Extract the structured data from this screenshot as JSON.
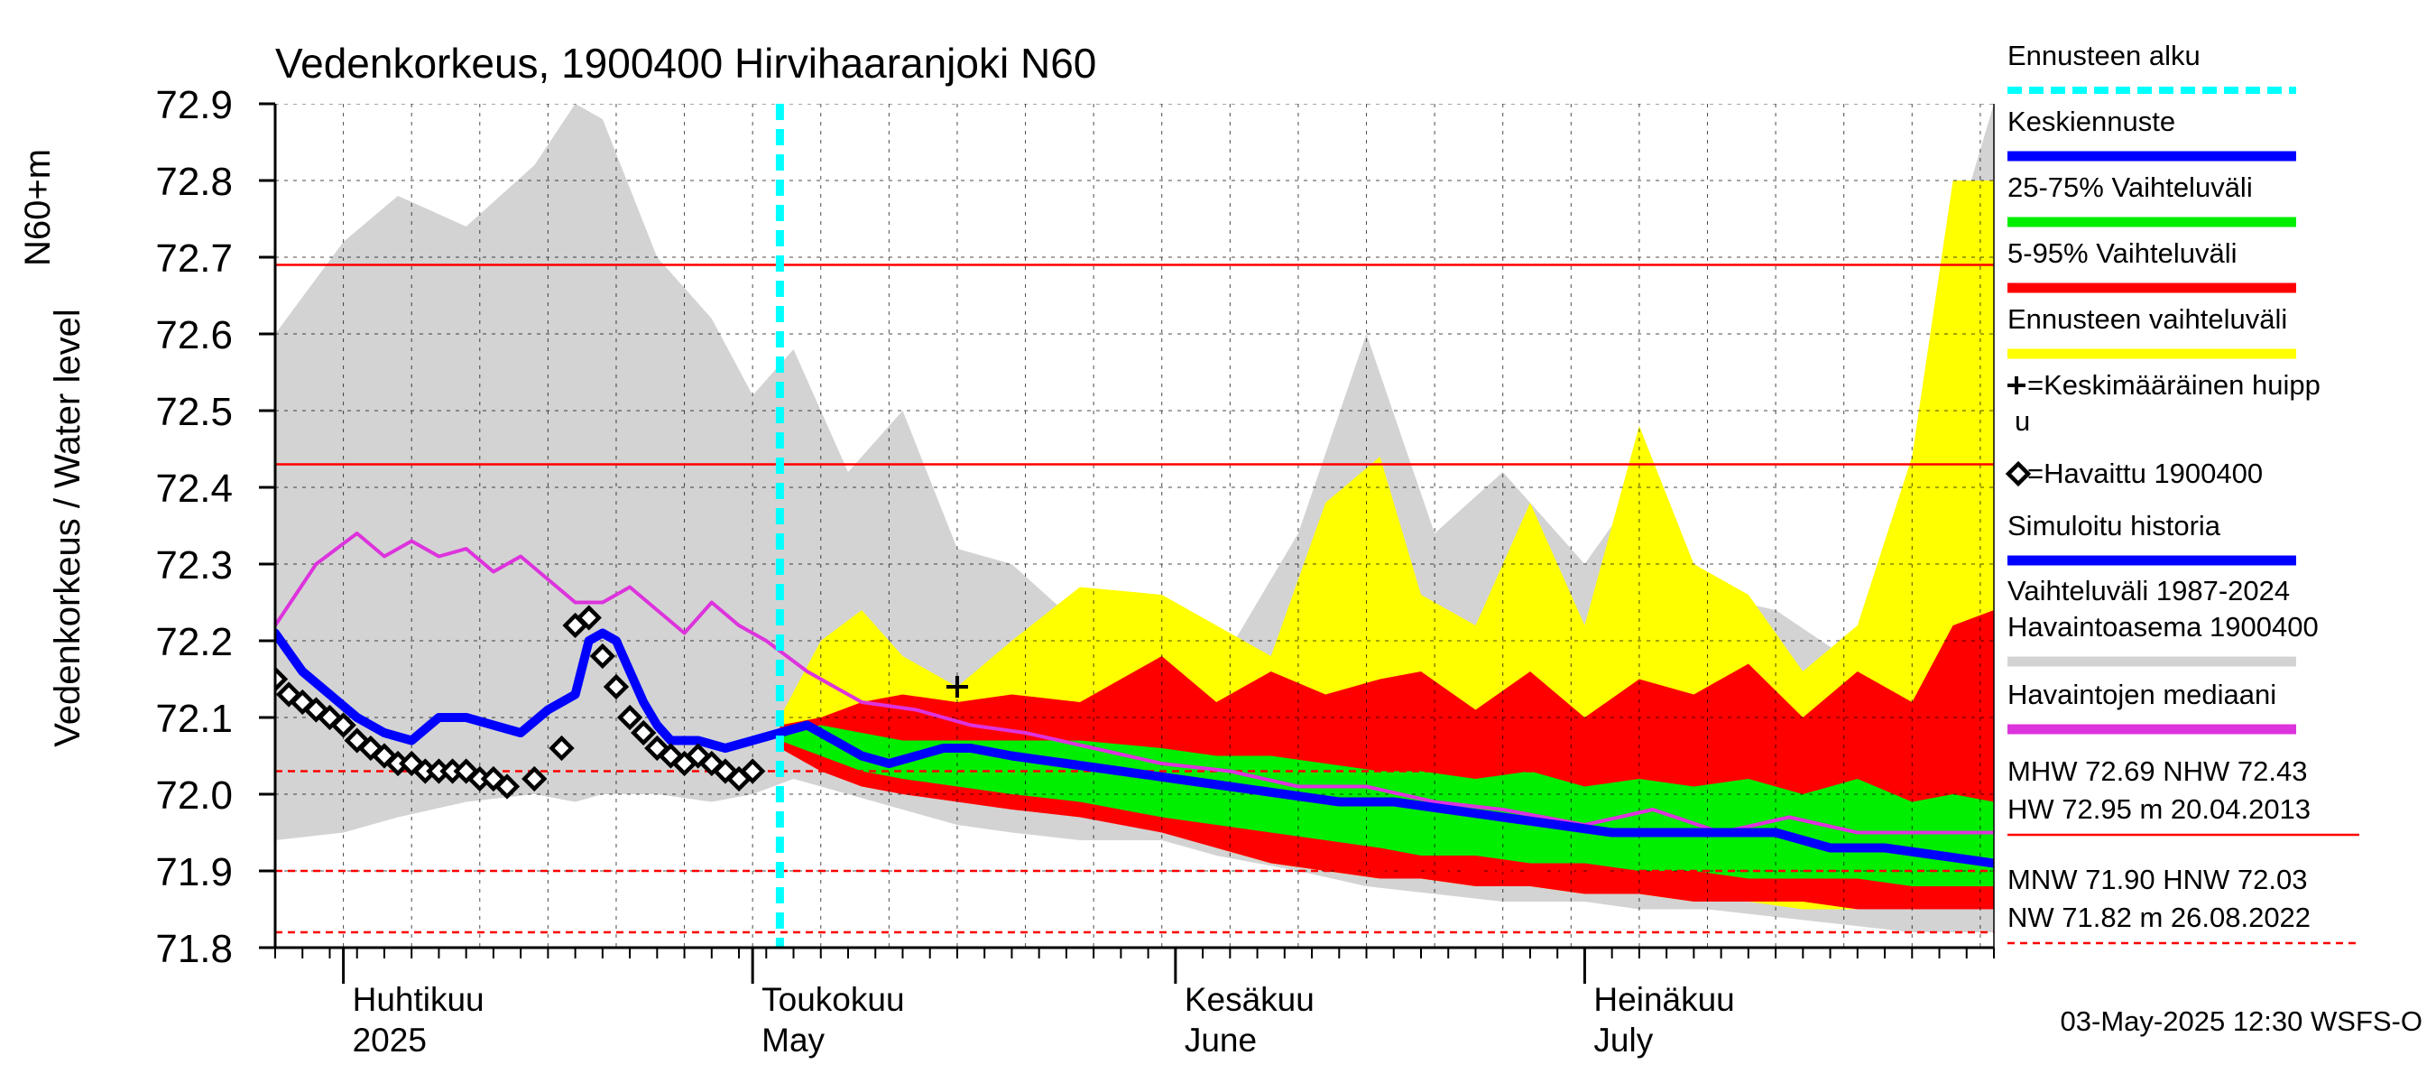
{
  "chart_data": {
    "type": "area",
    "title": "Vedenkorkeus, 1900400 Hirvihaaranjoki N60",
    "ylabel_lines": [
      "Vedenkorkeus / Water level",
      "N60+m"
    ],
    "ylim": [
      71.8,
      72.9
    ],
    "yticks": [
      71.8,
      71.9,
      72.0,
      72.1,
      72.2,
      72.3,
      72.4,
      72.5,
      72.6,
      72.7,
      72.8,
      72.9
    ],
    "x_range": [
      "2025-03-27",
      "2025-07-31"
    ],
    "month_ticks": [
      {
        "date": "2025-04-01",
        "fi": "Huhtikuu",
        "en": "2025"
      },
      {
        "date": "2025-05-01",
        "fi": "Toukokuu",
        "en": "May"
      },
      {
        "date": "2025-06-01",
        "fi": "Kesäkuu",
        "en": "June"
      },
      {
        "date": "2025-07-01",
        "fi": "Heinäkuu",
        "en": "July"
      }
    ],
    "forecast_start": "2025-05-03",
    "reference_lines": [
      {
        "name": "MHW",
        "value": 72.69,
        "style": "solid"
      },
      {
        "name": "NHW",
        "value": 72.43,
        "style": "solid"
      },
      {
        "name": "HNW",
        "value": 72.03,
        "style": "dashed"
      },
      {
        "name": "MNW",
        "value": 71.9,
        "style": "dashed"
      },
      {
        "name": "NW",
        "value": 71.82,
        "style": "dashed"
      }
    ],
    "mean_peak": {
      "date": "2025-05-16",
      "value": 72.14
    },
    "series": [
      {
        "name": "Vaihteluväli 1987-2024 Havaintoasema 1900400",
        "kind": "band",
        "color": "#d3d3d3",
        "x": [
          "2025-03-27",
          "2025-04-01",
          "2025-04-05",
          "2025-04-10",
          "2025-04-15",
          "2025-04-18",
          "2025-04-20",
          "2025-04-24",
          "2025-04-28",
          "2025-05-01",
          "2025-05-04",
          "2025-05-08",
          "2025-05-12",
          "2025-05-16",
          "2025-05-20",
          "2025-05-25",
          "2025-05-31",
          "2025-06-04",
          "2025-06-10",
          "2025-06-15",
          "2025-06-20",
          "2025-06-25",
          "2025-07-01",
          "2025-07-05",
          "2025-07-10",
          "2025-07-15",
          "2025-07-20",
          "2025-07-25",
          "2025-07-28",
          "2025-07-31"
        ],
        "high": [
          72.6,
          72.72,
          72.78,
          72.74,
          72.82,
          72.9,
          72.88,
          72.7,
          72.62,
          72.52,
          72.58,
          72.42,
          72.5,
          72.32,
          72.3,
          72.22,
          72.22,
          72.16,
          72.34,
          72.6,
          72.34,
          72.42,
          72.3,
          72.4,
          72.26,
          72.24,
          72.18,
          72.14,
          72.72,
          72.9
        ],
        "low": [
          71.94,
          71.95,
          71.97,
          71.99,
          72.0,
          71.99,
          72.0,
          72.0,
          71.99,
          72.0,
          72.02,
          72.0,
          71.98,
          71.96,
          71.95,
          71.94,
          71.94,
          71.92,
          71.9,
          71.88,
          71.87,
          71.86,
          71.86,
          71.85,
          71.85,
          71.84,
          71.83,
          71.82,
          71.82,
          71.82
        ]
      },
      {
        "name": "Ennusteen vaihteluväli",
        "kind": "band",
        "color": "#ffff00",
        "x": [
          "2025-05-03",
          "2025-05-06",
          "2025-05-09",
          "2025-05-12",
          "2025-05-16",
          "2025-05-20",
          "2025-05-25",
          "2025-05-31",
          "2025-06-04",
          "2025-06-08",
          "2025-06-12",
          "2025-06-16",
          "2025-06-19",
          "2025-06-23",
          "2025-06-27",
          "2025-07-01",
          "2025-07-05",
          "2025-07-09",
          "2025-07-13",
          "2025-07-17",
          "2025-07-21",
          "2025-07-25",
          "2025-07-28",
          "2025-07-31"
        ],
        "high": [
          72.1,
          72.2,
          72.24,
          72.18,
          72.14,
          72.2,
          72.27,
          72.26,
          72.22,
          72.18,
          72.38,
          72.44,
          72.26,
          72.22,
          72.38,
          72.22,
          72.48,
          72.3,
          72.26,
          72.16,
          72.22,
          72.44,
          72.8,
          72.8
        ],
        "low": [
          72.06,
          72.04,
          72.02,
          72.01,
          72.0,
          71.99,
          71.98,
          71.96,
          71.93,
          71.91,
          71.9,
          71.89,
          71.89,
          71.88,
          71.88,
          71.87,
          71.87,
          71.86,
          71.86,
          71.85,
          71.85,
          71.85,
          71.85,
          71.85
        ]
      },
      {
        "name": "5-95% Vaihteluväli",
        "kind": "band",
        "color": "#ff0000",
        "x": [
          "2025-05-03",
          "2025-05-06",
          "2025-05-09",
          "2025-05-12",
          "2025-05-16",
          "2025-05-20",
          "2025-05-25",
          "2025-05-31",
          "2025-06-04",
          "2025-06-08",
          "2025-06-12",
          "2025-06-16",
          "2025-06-19",
          "2025-06-23",
          "2025-06-27",
          "2025-07-01",
          "2025-07-05",
          "2025-07-09",
          "2025-07-13",
          "2025-07-17",
          "2025-07-21",
          "2025-07-25",
          "2025-07-28",
          "2025-07-31"
        ],
        "high": [
          72.09,
          72.1,
          72.12,
          72.13,
          72.12,
          72.13,
          72.12,
          72.18,
          72.12,
          72.16,
          72.13,
          72.15,
          72.16,
          72.11,
          72.16,
          72.1,
          72.15,
          72.13,
          72.17,
          72.1,
          72.16,
          72.12,
          72.22,
          72.24
        ],
        "low": [
          72.06,
          72.03,
          72.01,
          72.0,
          71.99,
          71.98,
          71.97,
          71.95,
          71.93,
          71.91,
          71.9,
          71.89,
          71.89,
          71.88,
          71.88,
          71.87,
          71.87,
          71.86,
          71.86,
          71.86,
          71.85,
          71.85,
          71.85,
          71.85
        ]
      },
      {
        "name": "25-75% Vaihteluväli",
        "kind": "band",
        "color": "#00ee00",
        "x": [
          "2025-05-03",
          "2025-05-06",
          "2025-05-09",
          "2025-05-12",
          "2025-05-16",
          "2025-05-20",
          "2025-05-25",
          "2025-05-31",
          "2025-06-04",
          "2025-06-08",
          "2025-06-12",
          "2025-06-16",
          "2025-06-19",
          "2025-06-23",
          "2025-06-27",
          "2025-07-01",
          "2025-07-05",
          "2025-07-09",
          "2025-07-13",
          "2025-07-17",
          "2025-07-21",
          "2025-07-25",
          "2025-07-28",
          "2025-07-31"
        ],
        "high": [
          72.08,
          72.09,
          72.08,
          72.07,
          72.07,
          72.07,
          72.07,
          72.06,
          72.05,
          72.05,
          72.04,
          72.03,
          72.03,
          72.02,
          72.03,
          72.01,
          72.02,
          72.01,
          72.02,
          72.0,
          72.02,
          71.99,
          72.0,
          71.99
        ],
        "low": [
          72.07,
          72.05,
          72.03,
          72.02,
          72.01,
          72.0,
          71.99,
          71.97,
          71.96,
          71.95,
          71.94,
          71.93,
          71.92,
          71.92,
          71.91,
          71.91,
          71.9,
          71.9,
          71.89,
          71.89,
          71.89,
          71.88,
          71.88,
          71.88
        ]
      },
      {
        "name": "Havaintojen mediaani",
        "kind": "line",
        "color": "#dd33dd",
        "x": [
          "2025-03-27",
          "2025-03-30",
          "2025-04-02",
          "2025-04-04",
          "2025-04-06",
          "2025-04-08",
          "2025-04-10",
          "2025-04-12",
          "2025-04-14",
          "2025-04-16",
          "2025-04-18",
          "2025-04-20",
          "2025-04-22",
          "2025-04-24",
          "2025-04-26",
          "2025-04-28",
          "2025-04-30",
          "2025-05-02",
          "2025-05-05",
          "2025-05-09",
          "2025-05-13",
          "2025-05-17",
          "2025-05-21",
          "2025-05-26",
          "2025-05-31",
          "2025-06-05",
          "2025-06-10",
          "2025-06-15",
          "2025-06-20",
          "2025-06-25",
          "2025-07-01",
          "2025-07-06",
          "2025-07-11",
          "2025-07-16",
          "2025-07-21",
          "2025-07-26",
          "2025-07-31"
        ],
        "values": [
          72.22,
          72.3,
          72.34,
          72.31,
          72.33,
          72.31,
          72.32,
          72.29,
          72.31,
          72.28,
          72.25,
          72.25,
          72.27,
          72.24,
          72.21,
          72.25,
          72.22,
          72.2,
          72.16,
          72.12,
          72.11,
          72.09,
          72.08,
          72.06,
          72.04,
          72.03,
          72.01,
          72.01,
          71.99,
          71.98,
          71.96,
          71.98,
          71.95,
          71.97,
          71.95,
          71.95,
          71.95
        ]
      },
      {
        "name": "Simuloitu historia",
        "kind": "line",
        "color": "#0000ff",
        "x": [
          "2025-03-27",
          "2025-03-29",
          "2025-03-31",
          "2025-04-02",
          "2025-04-04",
          "2025-04-06",
          "2025-04-08",
          "2025-04-10",
          "2025-04-12",
          "2025-04-14",
          "2025-04-16",
          "2025-04-17",
          "2025-04-18",
          "2025-04-19",
          "2025-04-20",
          "2025-04-21",
          "2025-04-22",
          "2025-04-23",
          "2025-04-24",
          "2025-04-25",
          "2025-04-27",
          "2025-04-29",
          "2025-05-01",
          "2025-05-03"
        ],
        "values": [
          72.21,
          72.16,
          72.13,
          72.1,
          72.08,
          72.07,
          72.1,
          72.1,
          72.09,
          72.08,
          72.11,
          72.12,
          72.13,
          72.2,
          72.21,
          72.2,
          72.16,
          72.12,
          72.09,
          72.07,
          72.07,
          72.06,
          72.07,
          72.08
        ]
      },
      {
        "name": "Keskiennuste",
        "kind": "line",
        "color": "#0000ff",
        "x": [
          "2025-05-03",
          "2025-05-05",
          "2025-05-07",
          "2025-05-09",
          "2025-05-11",
          "2025-05-13",
          "2025-05-15",
          "2025-05-17",
          "2025-05-20",
          "2025-05-24",
          "2025-05-28",
          "2025-06-01",
          "2025-06-05",
          "2025-06-09",
          "2025-06-13",
          "2025-06-17",
          "2025-06-21",
          "2025-06-25",
          "2025-06-29",
          "2025-07-03",
          "2025-07-07",
          "2025-07-11",
          "2025-07-15",
          "2025-07-19",
          "2025-07-23",
          "2025-07-27",
          "2025-07-31"
        ],
        "values": [
          72.08,
          72.09,
          72.07,
          72.05,
          72.04,
          72.05,
          72.06,
          72.06,
          72.05,
          72.04,
          72.03,
          72.02,
          72.01,
          72.0,
          71.99,
          71.99,
          71.98,
          71.97,
          71.96,
          71.95,
          71.95,
          71.95,
          71.95,
          71.93,
          71.93,
          71.92,
          71.91
        ]
      },
      {
        "name": "=Havaittu 1900400",
        "kind": "markers",
        "color": "#000000",
        "x": [
          "2025-03-27",
          "2025-03-28",
          "2025-03-29",
          "2025-03-30",
          "2025-03-31",
          "2025-04-01",
          "2025-04-02",
          "2025-04-03",
          "2025-04-04",
          "2025-04-05",
          "2025-04-06",
          "2025-04-07",
          "2025-04-08",
          "2025-04-09",
          "2025-04-10",
          "2025-04-11",
          "2025-04-12",
          "2025-04-13",
          "2025-04-15",
          "2025-04-17",
          "2025-04-18",
          "2025-04-19",
          "2025-04-20",
          "2025-04-21",
          "2025-04-22",
          "2025-04-23",
          "2025-04-24",
          "2025-04-25",
          "2025-04-26",
          "2025-04-27",
          "2025-04-28",
          "2025-04-29",
          "2025-04-30",
          "2025-05-01"
        ],
        "values": [
          72.15,
          72.13,
          72.12,
          72.11,
          72.1,
          72.09,
          72.07,
          72.06,
          72.05,
          72.04,
          72.04,
          72.03,
          72.03,
          72.03,
          72.03,
          72.02,
          72.02,
          72.01,
          72.02,
          72.06,
          72.22,
          72.23,
          72.18,
          72.14,
          72.1,
          72.08,
          72.06,
          72.05,
          72.04,
          72.05,
          72.04,
          72.03,
          72.02,
          72.03
        ]
      }
    ],
    "legend": [
      {
        "label": "Ennusteen alku",
        "color": "#00ffff",
        "style": "dashed"
      },
      {
        "label": "Keskiennuste",
        "color": "#0000ff",
        "style": "line"
      },
      {
        "label": "25-75% Vaihteluväli",
        "color": "#00ee00",
        "style": "line"
      },
      {
        "label": "5-95% Vaihteluväli",
        "color": "#ff0000",
        "style": "line"
      },
      {
        "label": "Ennusteen vaihteluväli",
        "color": "#ffff00",
        "style": "line"
      },
      {
        "label": "=Keskimääräinen huipp",
        "label2": "u",
        "color": "#000000",
        "style": "plus"
      },
      {
        "label": "=Havaittu 1900400",
        "color": "#000000",
        "style": "diamond"
      },
      {
        "label": "Simuloitu historia",
        "color": "#0000ff",
        "style": "line"
      },
      {
        "label": "Vaihteluväli 1987-2024",
        "label2": " Havaintoasema 1900400",
        "color": "#d3d3d3",
        "style": "line"
      },
      {
        "label": "Havaintojen mediaani",
        "color": "#dd33dd",
        "style": "line"
      }
    ],
    "stats": [
      {
        "text": "MHW  72.69 NHW  72.43",
        "text2": "HW  72.95 m 20.04.2013",
        "color": "#ff0000",
        "style": "solid"
      },
      {
        "text": "MNW  71.90 HNW  72.03",
        "text2": "NW  71.82 m 26.08.2022",
        "color": "#ff0000",
        "style": "dashed"
      }
    ],
    "footer": "03-May-2025 12:30 WSFS-O"
  }
}
